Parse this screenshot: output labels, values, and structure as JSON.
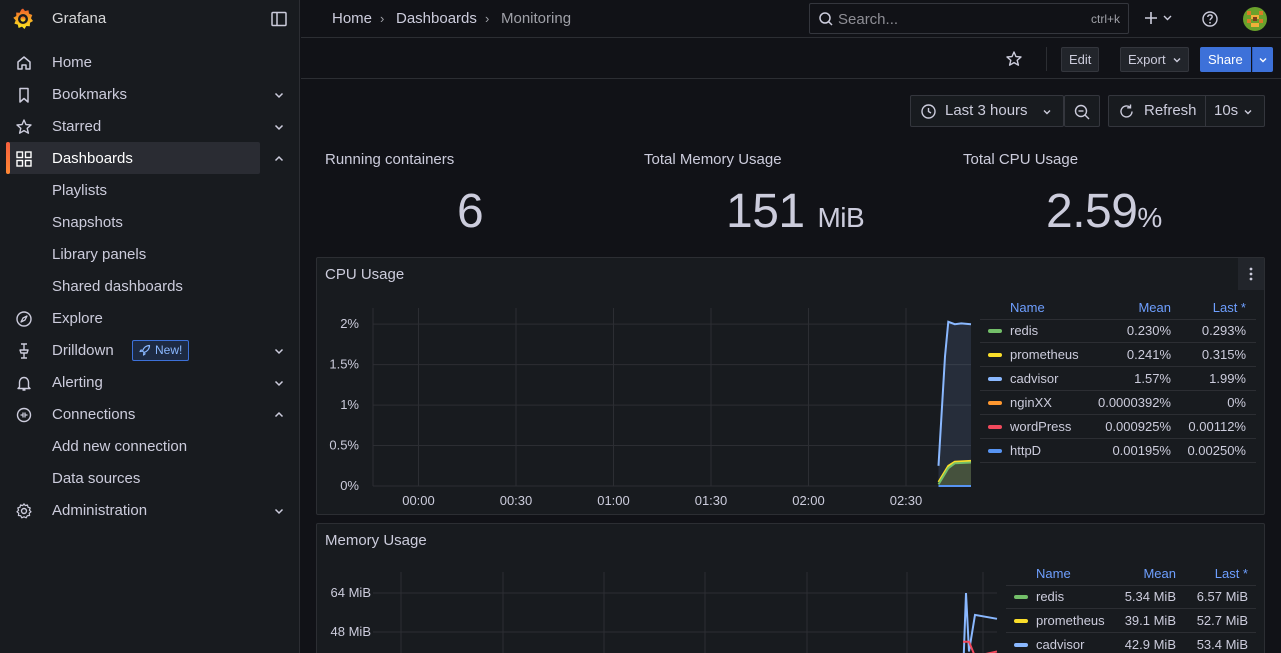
{
  "app": {
    "name": "Grafana"
  },
  "sidebar": {
    "items": [
      {
        "label": "Home",
        "icon": "home-icon",
        "chevron": ""
      },
      {
        "label": "Bookmarks",
        "icon": "bookmark-icon",
        "chevron": "down"
      },
      {
        "label": "Starred",
        "icon": "star-icon",
        "chevron": "down"
      },
      {
        "label": "Dashboards",
        "icon": "apps-icon",
        "chevron": "up",
        "active": true
      },
      {
        "label": "Playlists",
        "sub": true
      },
      {
        "label": "Snapshots",
        "sub": true
      },
      {
        "label": "Library panels",
        "sub": true
      },
      {
        "label": "Shared dashboards",
        "sub": true
      },
      {
        "label": "Explore",
        "icon": "compass-icon",
        "chevron": ""
      },
      {
        "label": "Drilldown",
        "icon": "drilldown-icon",
        "chevron": "down",
        "badge": "New!"
      },
      {
        "label": "Alerting",
        "icon": "bell-icon",
        "chevron": "down"
      },
      {
        "label": "Connections",
        "icon": "plug-icon",
        "chevron": "up"
      },
      {
        "label": "Add new connection",
        "sub": true
      },
      {
        "label": "Data sources",
        "sub": true
      },
      {
        "label": "Administration",
        "icon": "cog-icon",
        "chevron": "down"
      }
    ]
  },
  "breadcrumbs": [
    "Home",
    "Dashboards",
    "Monitoring"
  ],
  "search": {
    "placeholder": "Search...",
    "shortcut": "ctrl+k"
  },
  "toolbar": {
    "edit_label": "Edit",
    "export_label": "Export",
    "share_label": "Share"
  },
  "time": {
    "range_label": "Last 3 hours",
    "refresh_label": "Refresh",
    "interval": "10s"
  },
  "stats": [
    {
      "title": "Running containers",
      "value": "6",
      "unit": ""
    },
    {
      "title": "Total Memory Usage",
      "value": "151",
      "unit": "MiB"
    },
    {
      "title": "Total CPU Usage",
      "value": "2.59",
      "unit": "%"
    }
  ],
  "colors": {
    "green": "#73bf69",
    "yellow": "#fade2a",
    "blue": "#8ab8ff",
    "orange": "#ff9830",
    "red": "#f2495c",
    "darkblue": "#5794f2",
    "accent": "#3d71d9"
  },
  "cpu_panel": {
    "title": "CPU Usage",
    "legend_headers": {
      "name": "Name",
      "mean": "Mean",
      "last": "Last *"
    },
    "legend": [
      {
        "name": "redis",
        "mean": "0.230%",
        "last": "0.293%",
        "color": "#73bf69"
      },
      {
        "name": "prometheus",
        "mean": "0.241%",
        "last": "0.315%",
        "color": "#fade2a"
      },
      {
        "name": "cadvisor",
        "mean": "1.57%",
        "last": "1.99%",
        "color": "#8ab8ff"
      },
      {
        "name": "nginXX",
        "mean": "0.0000392%",
        "last": "0%",
        "color": "#ff9830"
      },
      {
        "name": "wordPress",
        "mean": "0.000925%",
        "last": "0.00112%",
        "color": "#f2495c"
      },
      {
        "name": "httpD",
        "mean": "0.00195%",
        "last": "0.00250%",
        "color": "#5794f2"
      }
    ]
  },
  "memory_panel": {
    "title": "Memory Usage",
    "legend_headers": {
      "name": "Name",
      "mean": "Mean",
      "last": "Last *"
    },
    "legend": [
      {
        "name": "redis",
        "mean": "5.34 MiB",
        "last": "6.57 MiB",
        "color": "#73bf69"
      },
      {
        "name": "prometheus",
        "mean": "39.1 MiB",
        "last": "52.7 MiB",
        "color": "#fade2a"
      },
      {
        "name": "cadvisor",
        "mean": "42.9 MiB",
        "last": "53.4 MiB",
        "color": "#8ab8ff"
      }
    ]
  },
  "chart_data": [
    {
      "type": "line",
      "title": "CPU Usage",
      "x_ticks": [
        "00:00",
        "00:30",
        "01:00",
        "01:30",
        "02:00",
        "02:30"
      ],
      "y_ticks": [
        "0%",
        "0.5%",
        "1%",
        "1.5%",
        "2%"
      ],
      "ylim": [
        0,
        2.2
      ],
      "xlim": [
        "23:46",
        "02:50"
      ],
      "grid": true,
      "legend": "right",
      "series": [
        {
          "name": "cadvisor",
          "x": [
            "02:40",
            "02:42",
            "02:43",
            "02:45",
            "02:47",
            "02:50"
          ],
          "values": [
            0.25,
            1.6,
            2.03,
            2.0,
            2.01,
            2.0
          ]
        },
        {
          "name": "prometheus",
          "x": [
            "02:40",
            "02:43",
            "02:45",
            "02:50"
          ],
          "values": [
            0.05,
            0.25,
            0.3,
            0.31
          ]
        },
        {
          "name": "redis",
          "x": [
            "02:40",
            "02:43",
            "02:45",
            "02:50"
          ],
          "values": [
            0.02,
            0.22,
            0.28,
            0.29
          ]
        },
        {
          "name": "httpD",
          "x": [
            "02:40",
            "02:50"
          ],
          "values": [
            0.0,
            0.0
          ]
        }
      ]
    },
    {
      "type": "line",
      "title": "Memory Usage",
      "y_ticks": [
        "64 MiB",
        "48 MiB"
      ],
      "grid": true,
      "legend": "right",
      "series": [
        {
          "name": "cadvisor",
          "x": [
            "02:40",
            "02:42",
            "02:43",
            "02:45",
            "02:50"
          ],
          "values": [
            30,
            64,
            40,
            55,
            53.4
          ]
        },
        {
          "name": "wordPress",
          "x": [
            "02:40",
            "02:43",
            "02:45",
            "02:50"
          ],
          "values": [
            44,
            44,
            38,
            40
          ]
        }
      ]
    }
  ]
}
